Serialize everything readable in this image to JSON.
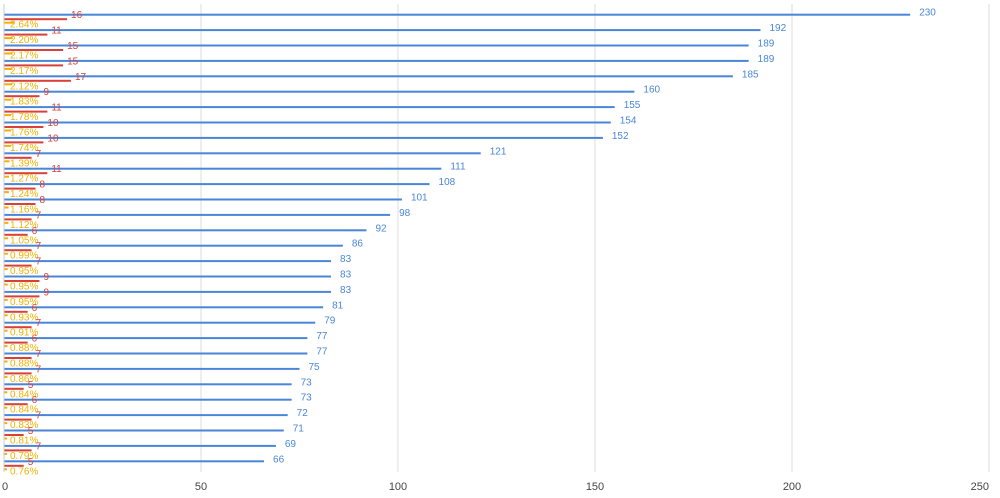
{
  "chart_data": {
    "type": "bar",
    "orientation": "horizontal",
    "xlim": [
      0,
      250
    ],
    "x_ticks": [
      0,
      50,
      100,
      150,
      200,
      250
    ],
    "x_tick_labels": [
      "0",
      "50",
      "100",
      "150",
      "200",
      "250"
    ],
    "grid": true,
    "legend": "none",
    "colors": {
      "series1": "#4a86d8",
      "series2": "#d9403a",
      "series3": "#f2b100",
      "grid": "#dddddd"
    },
    "series": [
      {
        "values": [
          230,
          192,
          189,
          189,
          185,
          160,
          155,
          154,
          152,
          121,
          111,
          108,
          101,
          98,
          92,
          86,
          83,
          83,
          83,
          81,
          79,
          77,
          77,
          75,
          73,
          73,
          72,
          71,
          69,
          66
        ],
        "labels": [
          "230",
          "192",
          "189",
          "189",
          "185",
          "160",
          "155",
          "154",
          "152",
          "121",
          "111",
          "108",
          "101",
          "98",
          "92",
          "86",
          "83",
          "83",
          "83",
          "81",
          "79",
          "77",
          "77",
          "75",
          "73",
          "73",
          "72",
          "71",
          "69",
          "66"
        ]
      },
      {
        "values": [
          16,
          11,
          15,
          15,
          17,
          9,
          11,
          10,
          10,
          7,
          11,
          8,
          8,
          7,
          6,
          7,
          7,
          9,
          9,
          6,
          7,
          6,
          7,
          7,
          5,
          6,
          7,
          5,
          7,
          5
        ],
        "labels": [
          "16",
          "11",
          "15",
          "15",
          "17",
          "9",
          "11",
          "10",
          "10",
          "7",
          "11",
          "8",
          "8",
          "7",
          "6",
          "7",
          "7",
          "9",
          "9",
          "6",
          "7",
          "6",
          "7",
          "7",
          "5",
          "6",
          "7",
          "5",
          "7",
          "5"
        ]
      },
      {
        "values": [
          2.64,
          2.2,
          2.17,
          2.17,
          2.12,
          1.83,
          1.78,
          1.76,
          1.74,
          1.39,
          1.27,
          1.24,
          1.16,
          1.12,
          1.05,
          0.99,
          0.95,
          0.95,
          0.95,
          0.93,
          0.91,
          0.88,
          0.88,
          0.86,
          0.84,
          0.84,
          0.83,
          0.81,
          0.79,
          0.76
        ],
        "labels": [
          "2.64%",
          "2.20%",
          "2.17%",
          "2.17%",
          "2.12%",
          "1.83%",
          "1.78%",
          "1.76%",
          "1.74%",
          "1.39%",
          "1.27%",
          "1.24%",
          "1.16%",
          "1.12%",
          "1.05%",
          "0.99%",
          "0.95%",
          "0.95%",
          "0.95%",
          "0.93%",
          "0.91%",
          "0.88%",
          "0.88%",
          "0.86%",
          "0.84%",
          "0.84%",
          "0.83%",
          "0.81%",
          "0.79%",
          "0.76%"
        ]
      }
    ]
  }
}
